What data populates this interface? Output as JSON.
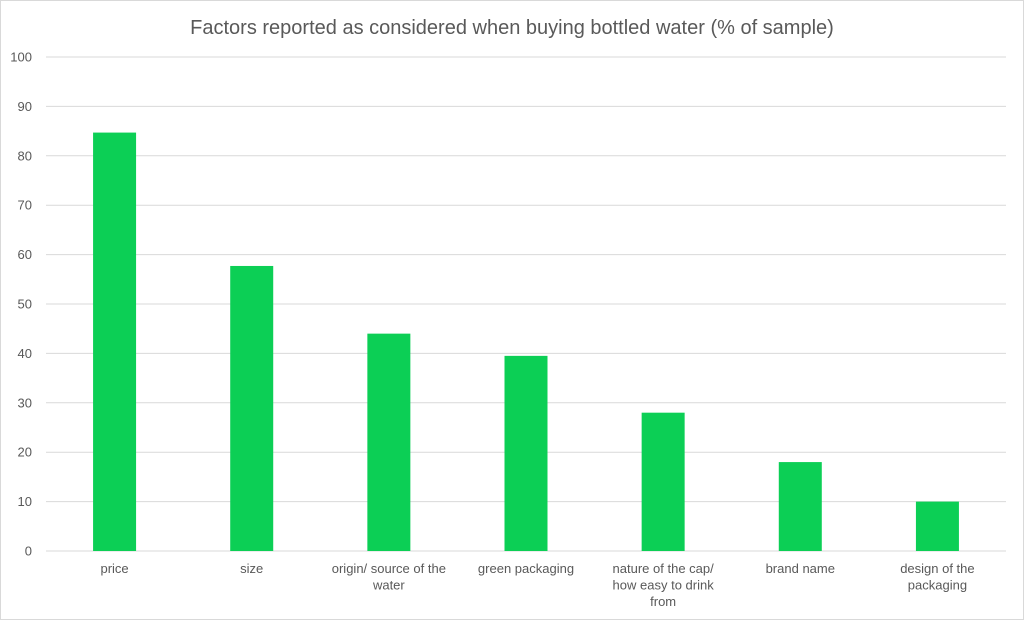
{
  "chart_data": {
    "type": "bar",
    "title": "Factors reported as considered when buying bottled water (% of sample)",
    "categories": [
      [
        "price"
      ],
      [
        "size"
      ],
      [
        "origin/ source of the",
        "water"
      ],
      [
        "green packaging"
      ],
      [
        "nature of the cap/",
        "how easy to drink",
        "from"
      ],
      [
        "brand name"
      ],
      [
        "design of the",
        "packaging"
      ]
    ],
    "values": [
      84.7,
      57.7,
      44.0,
      39.5,
      28.0,
      18.0,
      10.0
    ],
    "ylim": [
      0,
      100
    ],
    "yticks": [
      0,
      10,
      20,
      30,
      40,
      50,
      60,
      70,
      80,
      90,
      100
    ],
    "xlabel": "",
    "ylabel": "",
    "grid": true,
    "bar_color": "#0ccf55"
  }
}
